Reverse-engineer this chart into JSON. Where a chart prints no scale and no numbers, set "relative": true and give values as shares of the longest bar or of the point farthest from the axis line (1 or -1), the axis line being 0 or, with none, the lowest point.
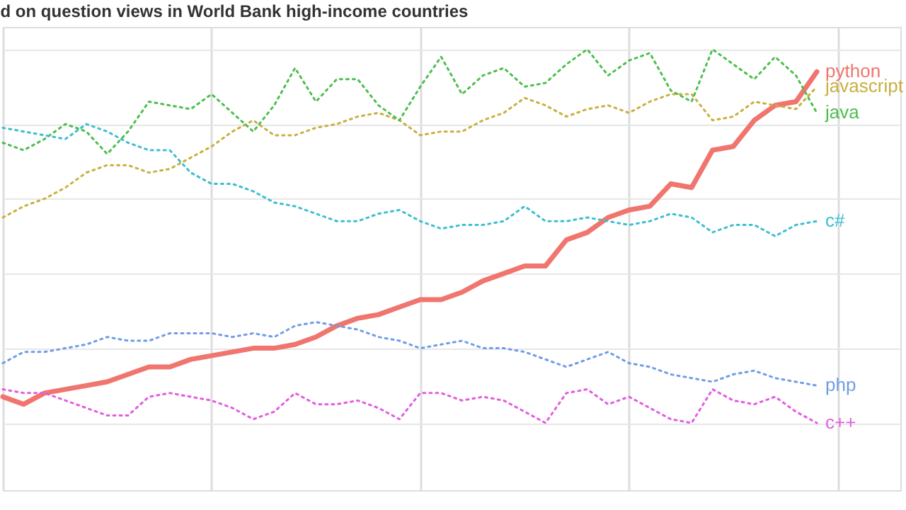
{
  "chart_data": {
    "type": "line",
    "title": "d on question views in World Bank high-income countries",
    "relative": true,
    "grid": true,
    "legend": false,
    "categories": [
      null,
      null,
      null,
      null,
      null,
      null,
      null,
      null,
      null,
      null,
      null,
      null,
      null,
      null,
      null,
      null,
      null,
      null,
      null,
      null,
      null,
      null,
      null,
      null,
      null,
      null,
      null,
      null,
      null,
      null,
      null,
      null,
      null,
      null,
      null,
      null,
      null,
      null,
      null,
      null
    ],
    "series": [
      {
        "name": "python",
        "color": "#f0756e",
        "line_style": "solid",
        "values": [
          0.07,
          0.05,
          0.08,
          0.09,
          0.1,
          0.11,
          0.13,
          0.15,
          0.15,
          0.17,
          0.18,
          0.19,
          0.2,
          0.2,
          0.21,
          0.23,
          0.26,
          0.28,
          0.29,
          0.31,
          0.33,
          0.33,
          0.35,
          0.38,
          0.4,
          0.42,
          0.42,
          0.49,
          0.51,
          0.55,
          0.57,
          0.58,
          0.64,
          0.63,
          0.73,
          0.74,
          0.81,
          0.85,
          0.86,
          0.94
        ]
      },
      {
        "name": "javascript",
        "color": "#c8b040",
        "line_style": "dotted",
        "values": [
          0.55,
          0.58,
          0.6,
          0.63,
          0.67,
          0.69,
          0.69,
          0.67,
          0.68,
          0.71,
          0.74,
          0.78,
          0.81,
          0.77,
          0.77,
          0.79,
          0.8,
          0.82,
          0.83,
          0.81,
          0.77,
          0.78,
          0.78,
          0.81,
          0.83,
          0.87,
          0.85,
          0.82,
          0.84,
          0.85,
          0.83,
          0.86,
          0.88,
          0.88,
          0.81,
          0.82,
          0.86,
          0.85,
          0.84,
          0.9
        ]
      },
      {
        "name": "java",
        "color": "#4cbf4c",
        "line_style": "dotted",
        "values": [
          0.75,
          0.73,
          0.76,
          0.8,
          0.78,
          0.72,
          0.78,
          0.86,
          0.85,
          0.84,
          0.88,
          0.83,
          0.78,
          0.85,
          0.95,
          0.86,
          0.92,
          0.92,
          0.85,
          0.81,
          0.9,
          0.98,
          0.88,
          0.93,
          0.95,
          0.9,
          0.91,
          0.96,
          1.0,
          0.93,
          0.97,
          0.99,
          0.89,
          0.86,
          1.0,
          0.96,
          0.92,
          0.98,
          0.93,
          0.83
        ]
      },
      {
        "name": "c#",
        "color": "#3cbfcf",
        "line_style": "dotted",
        "values": [
          0.79,
          0.78,
          0.77,
          0.76,
          0.8,
          0.78,
          0.75,
          0.73,
          0.73,
          0.67,
          0.64,
          0.64,
          0.62,
          0.59,
          0.58,
          0.56,
          0.54,
          0.54,
          0.56,
          0.57,
          0.54,
          0.52,
          0.53,
          0.53,
          0.54,
          0.58,
          0.54,
          0.54,
          0.55,
          0.54,
          0.53,
          0.54,
          0.56,
          0.55,
          0.51,
          0.53,
          0.53,
          0.5,
          0.53,
          0.54
        ]
      },
      {
        "name": "php",
        "color": "#6f9de6",
        "line_style": "dotted",
        "values": [
          0.16,
          0.19,
          0.19,
          0.2,
          0.21,
          0.23,
          0.22,
          0.22,
          0.24,
          0.24,
          0.24,
          0.23,
          0.24,
          0.23,
          0.26,
          0.27,
          0.26,
          0.25,
          0.23,
          0.22,
          0.2,
          0.21,
          0.22,
          0.2,
          0.2,
          0.19,
          0.17,
          0.15,
          0.17,
          0.19,
          0.16,
          0.15,
          0.13,
          0.12,
          0.11,
          0.13,
          0.14,
          0.12,
          0.11,
          0.1
        ]
      },
      {
        "name": "c++",
        "color": "#e35ce0",
        "line_style": "dotted",
        "values": [
          0.09,
          0.08,
          0.08,
          0.06,
          0.04,
          0.02,
          0.02,
          0.07,
          0.08,
          0.07,
          0.06,
          0.04,
          0.01,
          0.03,
          0.08,
          0.05,
          0.05,
          0.06,
          0.04,
          0.01,
          0.08,
          0.08,
          0.06,
          0.07,
          0.06,
          0.03,
          0.0,
          0.08,
          0.09,
          0.05,
          0.07,
          0.04,
          0.01,
          0.0,
          0.09,
          0.06,
          0.05,
          0.07,
          0.03,
          0.0
        ]
      }
    ]
  }
}
